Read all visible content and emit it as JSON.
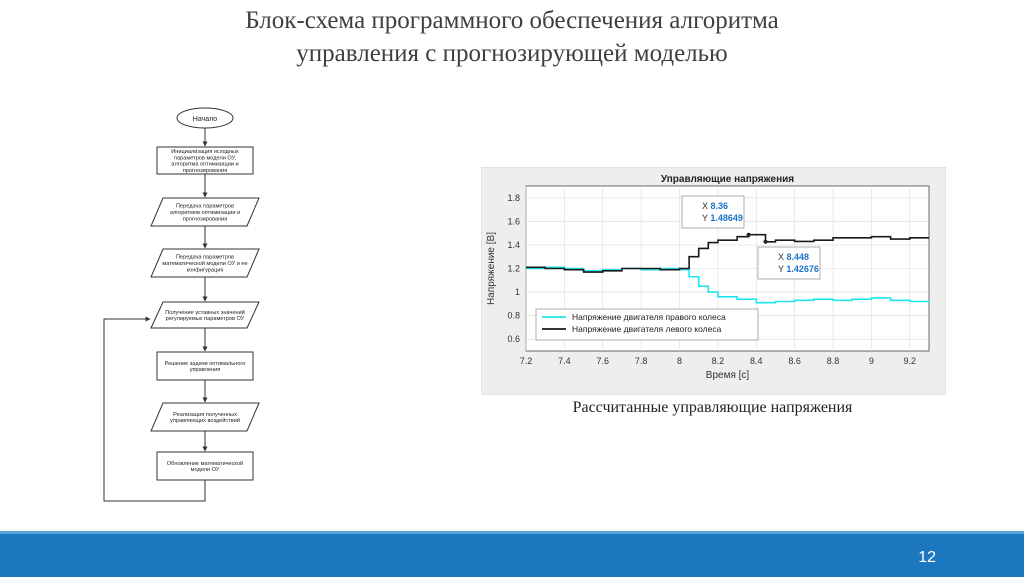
{
  "slide": {
    "title_line1": "Блок-схема программного обеспечения алгоритма",
    "title_line2": "управления с прогнозирующей моделью",
    "caption": "Рассчитанные управляющие напряжения",
    "page_number": "12",
    "accent_color": "#1b78bf"
  },
  "flowchart": {
    "start": "Начало",
    "steps": [
      {
        "shape": "process",
        "lines": [
          "Инициализация исходных",
          "параметров модели ОУ,",
          "алгоритма оптимизации и",
          "прогнозирования"
        ]
      },
      {
        "shape": "io",
        "lines": [
          "Передача параметров",
          "алгоритмов оптимизации и",
          "прогнозирования"
        ]
      },
      {
        "shape": "io",
        "lines": [
          "Передача параметров",
          "математической модели ОУ и ее",
          "конфигурация"
        ]
      },
      {
        "shape": "io",
        "lines": [
          "Получение уставных значений",
          "регулируемых параметров ОУ"
        ]
      },
      {
        "shape": "process",
        "lines": [
          "Решение задачи оптимального",
          "управления"
        ]
      },
      {
        "shape": "io",
        "lines": [
          "Реализация полученных",
          "управляющих воздействий"
        ]
      },
      {
        "shape": "process",
        "lines": [
          "Обновление математической",
          "модели ОУ"
        ]
      }
    ]
  },
  "chart_data": {
    "type": "line",
    "title": "Управляющие напряжения",
    "xlabel": "Время [с]",
    "ylabel": "Напряжение [В]",
    "xlim": [
      7.2,
      9.3
    ],
    "ylim": [
      0.5,
      1.9
    ],
    "xticks": [
      "7.2",
      "7.4",
      "7.6",
      "7.8",
      "8",
      "8.2",
      "8.4",
      "8.6",
      "8.8",
      "9",
      "9.2"
    ],
    "yticks": [
      "0.6",
      "0.8",
      "1",
      "1.2",
      "1.4",
      "1.6",
      "1.8"
    ],
    "grid": true,
    "legend_position": "bottom-left",
    "series": [
      {
        "name": "Напряжение двигателя правого колеса",
        "color": "#1ee6ee",
        "x": [
          7.2,
          7.3,
          7.4,
          7.5,
          7.6,
          7.7,
          7.8,
          7.9,
          8.0,
          8.05,
          8.1,
          8.15,
          8.2,
          8.3,
          8.4,
          8.5,
          8.6,
          8.7,
          8.8,
          8.9,
          9.0,
          9.1,
          9.2,
          9.3
        ],
        "y": [
          1.2,
          1.21,
          1.2,
          1.18,
          1.19,
          1.2,
          1.19,
          1.2,
          1.19,
          1.13,
          1.05,
          1.0,
          0.96,
          0.94,
          0.91,
          0.92,
          0.93,
          0.94,
          0.93,
          0.94,
          0.95,
          0.93,
          0.92,
          0.93
        ]
      },
      {
        "name": "Напряжение двигателя левого колеса",
        "color": "#1a1a1a",
        "x": [
          7.2,
          7.3,
          7.4,
          7.5,
          7.6,
          7.7,
          7.8,
          7.9,
          8.0,
          8.05,
          8.1,
          8.15,
          8.2,
          8.3,
          8.36,
          8.448,
          8.5,
          8.6,
          8.7,
          8.8,
          8.9,
          9.0,
          9.1,
          9.2,
          9.3
        ],
        "y": [
          1.21,
          1.2,
          1.19,
          1.17,
          1.18,
          1.2,
          1.2,
          1.19,
          1.2,
          1.3,
          1.37,
          1.42,
          1.44,
          1.47,
          1.48649,
          1.42676,
          1.44,
          1.43,
          1.44,
          1.46,
          1.46,
          1.47,
          1.45,
          1.46,
          1.46
        ]
      }
    ],
    "datatips": [
      {
        "x_label": "X",
        "x_value": "8.36",
        "y_label": "Y",
        "y_value": "1.48649",
        "x": 8.36,
        "y": 1.48649
      },
      {
        "x_label": "X",
        "x_value": "8.448",
        "y_label": "Y",
        "y_value": "1.42676",
        "x": 8.448,
        "y": 1.42676
      }
    ]
  }
}
